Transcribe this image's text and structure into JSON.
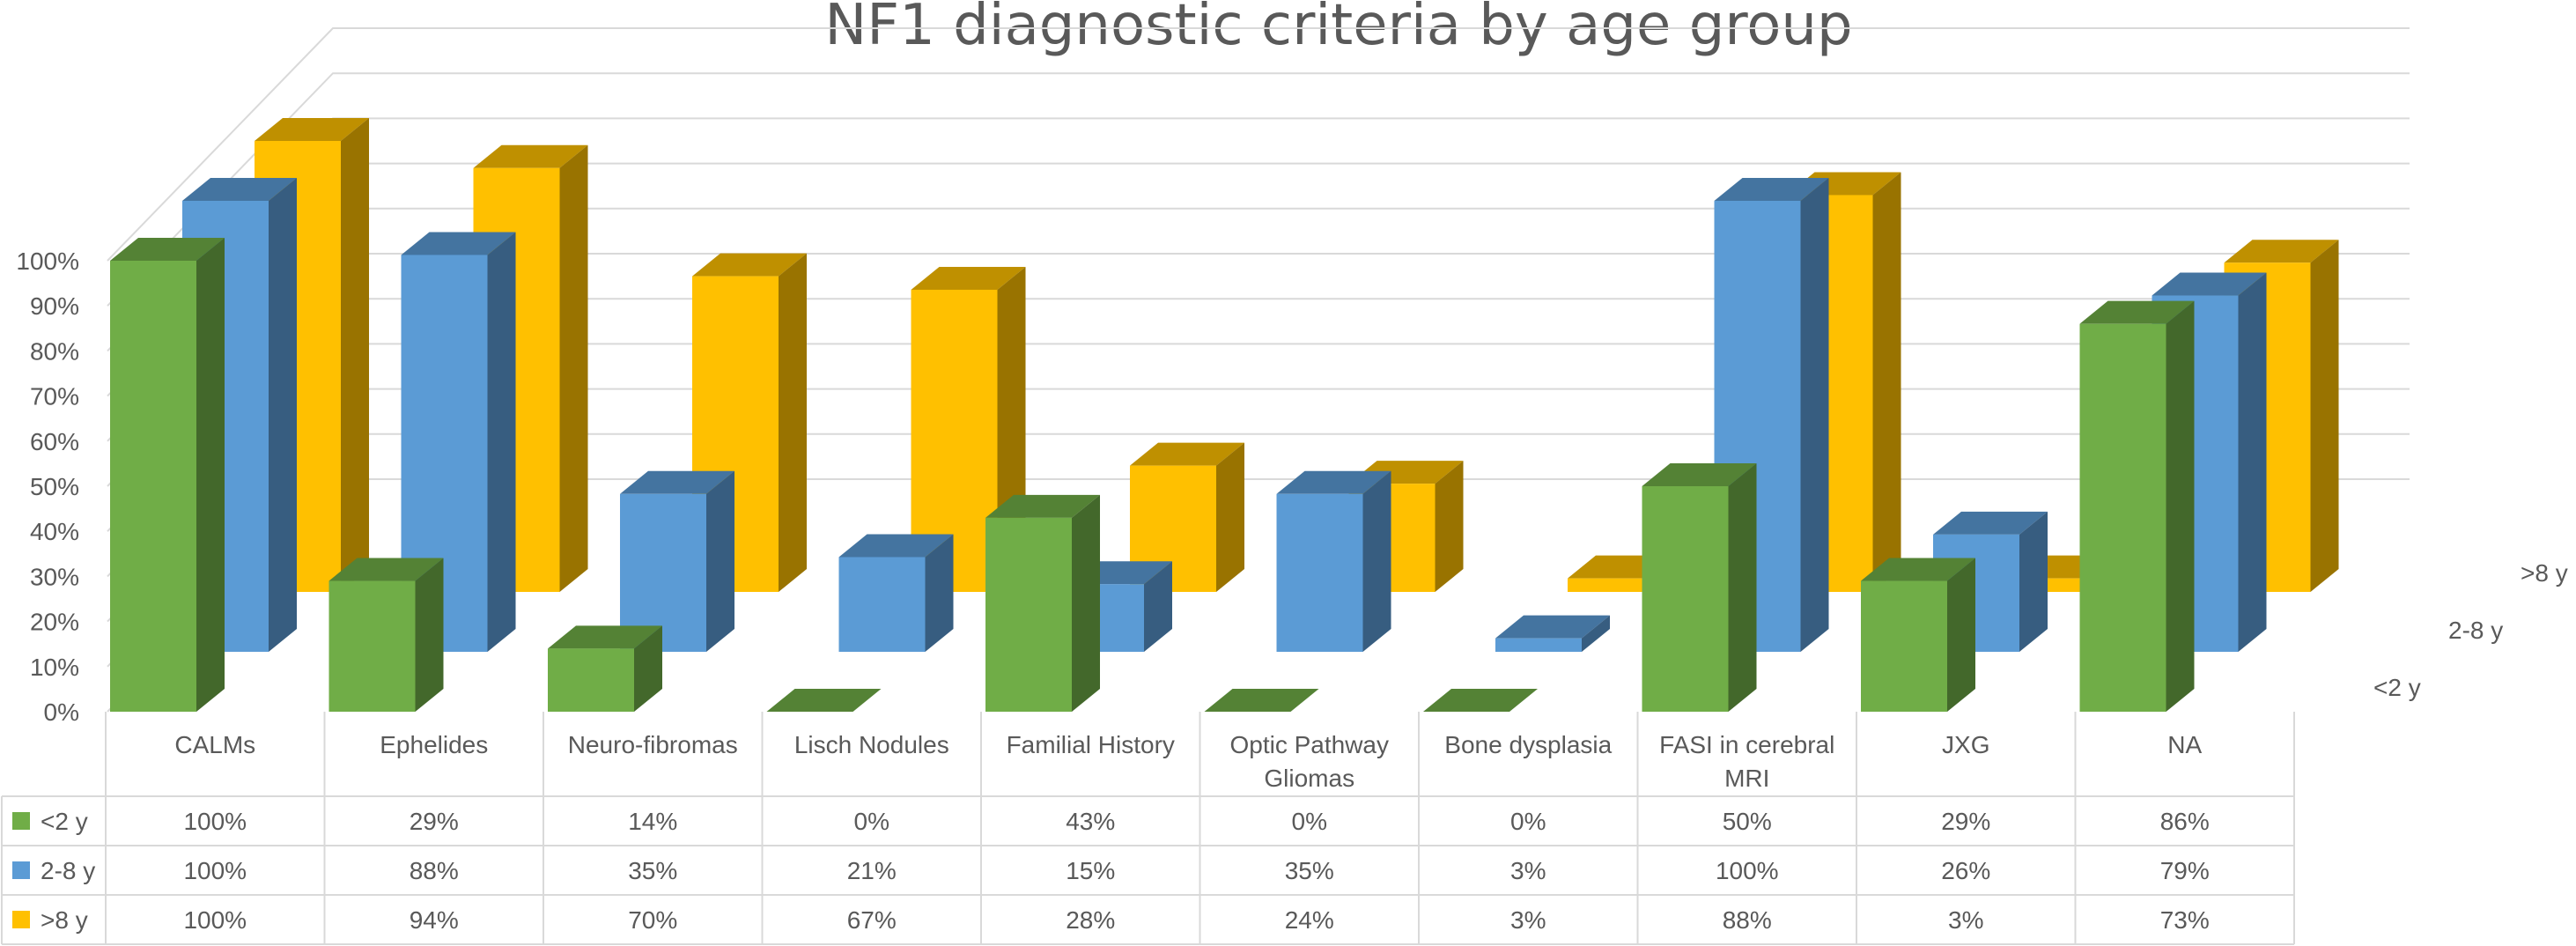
{
  "chart_data": {
    "type": "bar",
    "title": "NF1 diagnostic criteria by age group",
    "categories": [
      [
        "CALMs"
      ],
      [
        "Ephelides"
      ],
      [
        "Neuro-fibromas"
      ],
      [
        "Lisch Nodules"
      ],
      [
        "Familial History"
      ],
      [
        "Optic Pathway",
        "Gliomas"
      ],
      [
        "Bone dysplasia"
      ],
      [
        "FASI in cerebral",
        "MRI"
      ],
      [
        "JXG"
      ],
      [
        "NA"
      ]
    ],
    "series": [
      {
        "name": "<2 y",
        "color": "#70ad47",
        "values": [
          100,
          29,
          14,
          0,
          43,
          0,
          0,
          50,
          29,
          86
        ],
        "labels": [
          "100%",
          "29%",
          "14%",
          "0%",
          "43%",
          "0%",
          "0%",
          "50%",
          "29%",
          "86%"
        ]
      },
      {
        "name": "2-8 y",
        "color": "#5b9bd5",
        "values": [
          100,
          88,
          35,
          21,
          15,
          35,
          3,
          100,
          26,
          79
        ],
        "labels": [
          "100%",
          "88%",
          "35%",
          "21%",
          "15%",
          "35%",
          "3%",
          "100%",
          "26%",
          "79%"
        ]
      },
      {
        "name": ">8 y",
        "color": "#ffc000",
        "values": [
          100,
          94,
          70,
          67,
          28,
          24,
          3,
          88,
          3,
          73
        ],
        "labels": [
          "100%",
          "94%",
          "70%",
          "67%",
          "28%",
          "24%",
          "3%",
          "88%",
          "3%",
          "73%"
        ]
      }
    ],
    "y_ticks": [
      "0%",
      "10%",
      "20%",
      "30%",
      "40%",
      "50%",
      "60%",
      "70%",
      "80%",
      "90%",
      "100%"
    ],
    "ylim": [
      0,
      100
    ],
    "depth_labels": [
      "<2 y",
      "2-8 y",
      ">8 y"
    ],
    "legend": "data-table",
    "grid": true
  }
}
